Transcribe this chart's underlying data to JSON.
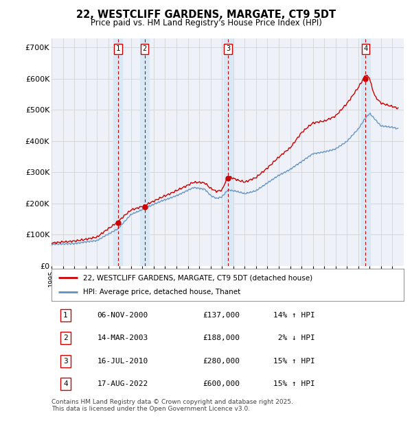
{
  "title": "22, WESTCLIFF GARDENS, MARGATE, CT9 5DT",
  "subtitle": "Price paid vs. HM Land Registry's House Price Index (HPI)",
  "y_ticks": [
    0,
    100000,
    200000,
    300000,
    400000,
    500000,
    600000,
    700000
  ],
  "y_labels": [
    "£0",
    "£100K",
    "£200K",
    "£300K",
    "£400K",
    "£500K",
    "£600K",
    "£700K"
  ],
  "ylim": [
    0,
    730000
  ],
  "transactions": [
    {
      "num": 1,
      "date": "06-NOV-2000",
      "year": 2000.85,
      "price": 137000,
      "pct": "14%",
      "dir": "↑"
    },
    {
      "num": 2,
      "date": "14-MAR-2003",
      "year": 2003.2,
      "price": 188000,
      "pct": "2%",
      "dir": "↓"
    },
    {
      "num": 3,
      "date": "16-JUL-2010",
      "year": 2010.54,
      "price": 280000,
      "pct": "15%",
      "dir": "↑"
    },
    {
      "num": 4,
      "date": "17-AUG-2022",
      "year": 2022.63,
      "price": 600000,
      "pct": "15%",
      "dir": "↑"
    }
  ],
  "legend_line1": "22, WESTCLIFF GARDENS, MARGATE, CT9 5DT (detached house)",
  "legend_line2": "HPI: Average price, detached house, Thanet",
  "footer": "Contains HM Land Registry data © Crown copyright and database right 2025.\nThis data is licensed under the Open Government Licence v3.0.",
  "red_color": "#cc0000",
  "blue_color": "#6090c0",
  "marker_color": "#cc0000",
  "background_color": "#ffffff",
  "plot_bg": "#eef2f8",
  "shade_color": "#d8e8f5",
  "grid_color": "#cccccc"
}
